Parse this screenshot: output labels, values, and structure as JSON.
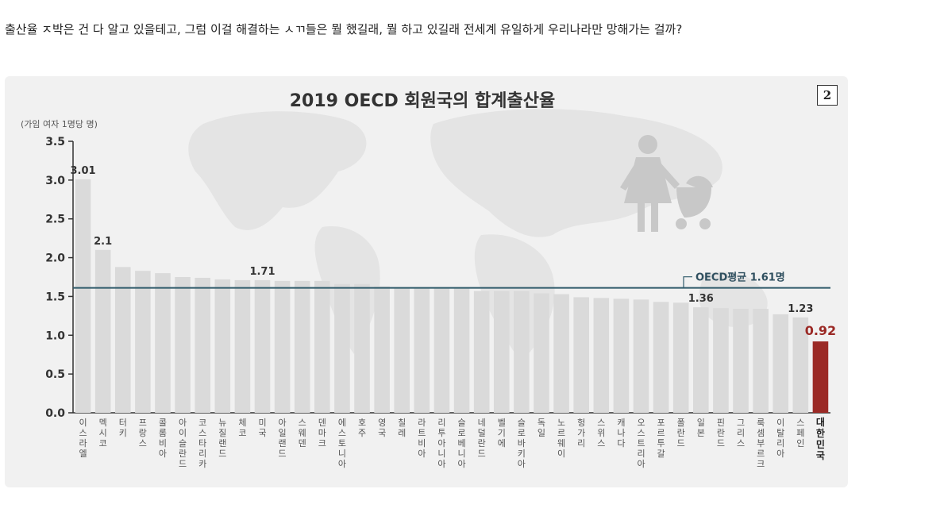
{
  "post": {
    "text": "출산율 ㅈ박은 건 다 알고 있을테고, 그럼 이걸 해결하는 ㅅㄲ들은 뭘 했길래, 뭘 하고 있길래 전세계 유일하게 우리나라만 망해가는 걸까?"
  },
  "badge": {
    "label": "2"
  },
  "icons": [
    "world-map-icon",
    "mother-with-stroller-icon"
  ],
  "colors": {
    "bar": "#dadada",
    "highlight": "#9b2a26",
    "avg_line": "#2f5a6a",
    "background": "#f1f1f1"
  },
  "chart_data": {
    "type": "bar",
    "title": "2019 OECD 회원국의 합계출산율",
    "ylabel": "(가임 여자 1명당 명)",
    "xlabel": "",
    "ylim": [
      0,
      3.5
    ],
    "yticks": [
      "0.0",
      "0.5",
      "1.0",
      "1.5",
      "2.0",
      "2.5",
      "3.0",
      "3.5"
    ],
    "categories": [
      "이스라엘",
      "멕시코",
      "터키",
      "프랑스",
      "콜롬비아",
      "아이슬란드",
      "코스타리카",
      "뉴질랜드",
      "체코",
      "미국",
      "아일랜드",
      "스웨덴",
      "덴마크",
      "에스토니아",
      "호주",
      "영국",
      "칠레",
      "라트비아",
      "리투아니아",
      "슬로베니아",
      "네덜란드",
      "벨기에",
      "슬로바키아",
      "독일",
      "노르웨이",
      "헝가리",
      "스위스",
      "캐나다",
      "오스트리아",
      "포르투갈",
      "폴란드",
      "일본",
      "핀란드",
      "그리스",
      "룩셈부르크",
      "이탈리아",
      "스페인",
      "대한민국"
    ],
    "values": [
      3.01,
      2.1,
      1.88,
      1.83,
      1.8,
      1.75,
      1.74,
      1.72,
      1.71,
      1.71,
      1.7,
      1.7,
      1.7,
      1.66,
      1.66,
      1.63,
      1.61,
      1.61,
      1.61,
      1.61,
      1.57,
      1.57,
      1.57,
      1.54,
      1.53,
      1.49,
      1.48,
      1.47,
      1.46,
      1.43,
      1.42,
      1.36,
      1.35,
      1.34,
      1.34,
      1.27,
      1.23,
      0.92
    ],
    "value_labels": [
      {
        "category": "이스라엘",
        "text": "3.01"
      },
      {
        "category": "멕시코",
        "text": "2.1"
      },
      {
        "category": "미국",
        "text": "1.71"
      },
      {
        "category": "일본",
        "text": "1.36"
      },
      {
        "category": "스페인",
        "text": "1.23"
      },
      {
        "category": "대한민국",
        "text": "0.92"
      }
    ],
    "highlight": "대한민국",
    "average": {
      "value": 1.61,
      "label": "OECD평균 1.61명"
    },
    "grid": false
  }
}
